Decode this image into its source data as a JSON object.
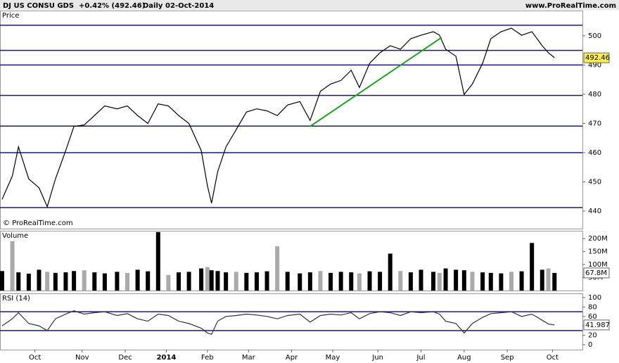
{
  "header": {
    "title": "DJ US CONSU GDS",
    "change": "+0.42% (492.46)",
    "period": "Daily",
    "date": "02-Oct-2014",
    "site": "www.ProRealTime.com"
  },
  "chart_data": [
    {
      "type": "line",
      "label": "Price",
      "copyright": "© ProRealTime.com",
      "color": "#000000",
      "x": [
        1,
        6,
        9,
        14,
        19,
        23,
        27,
        32,
        36,
        41,
        46,
        51,
        57,
        62,
        67,
        72,
        77,
        82,
        87,
        92,
        98,
        101,
        103,
        106,
        110,
        115,
        120,
        125,
        130,
        135,
        140,
        146,
        151,
        156,
        161,
        166,
        171,
        175,
        180,
        185,
        190,
        195,
        200,
        205,
        211,
        214,
        217,
        222,
        226,
        230,
        235,
        239,
        244,
        249,
        254,
        259,
        264,
        267,
        270
      ],
      "values": [
        444,
        452,
        462,
        451,
        448,
        441.5,
        451,
        460.7,
        469,
        469.5,
        472.7,
        476,
        475,
        476,
        472.7,
        470,
        476.7,
        476,
        472.7,
        470,
        460.7,
        448.7,
        442.7,
        453.5,
        461.9,
        467.9,
        473.9,
        475,
        474.3,
        472.7,
        476.3,
        477.5,
        471,
        481,
        483.5,
        484.7,
        488.2,
        482.3,
        490.6,
        494.2,
        496.6,
        495.4,
        499,
        500.2,
        501.4,
        500.2,
        495.4,
        493,
        479.9,
        483.5,
        490.6,
        499,
        501.4,
        502.6,
        500.2,
        501.4,
        496.6,
        494.2,
        492.5
      ],
      "xlim": [
        0,
        283.6
      ],
      "ylim": [
        434,
        504.3
      ],
      "yticks": [
        440,
        450,
        460,
        470,
        480,
        490,
        500
      ],
      "levels": [
        503.6,
        495,
        490,
        479.6,
        469.1,
        460,
        441.2
      ],
      "level_color": "#1a1a80",
      "trendline": {
        "x": [
          151,
          215
        ],
        "values": [
          469,
          499.4
        ],
        "color": "#22a022"
      },
      "last": 492.46
    },
    {
      "type": "bar",
      "label": "Volume",
      "color": "#000000",
      "highlight_color": "#aaaaaa",
      "x": [
        1,
        6,
        9,
        14,
        19,
        23,
        27,
        32,
        36,
        41,
        46,
        51,
        57,
        62,
        67,
        72,
        77,
        82,
        87,
        92,
        98,
        101,
        103,
        106,
        110,
        115,
        120,
        125,
        130,
        135,
        140,
        146,
        151,
        156,
        161,
        166,
        171,
        175,
        180,
        185,
        190,
        195,
        200,
        205,
        211,
        214,
        217,
        222,
        226,
        230,
        235,
        239,
        244,
        249,
        254,
        259,
        264,
        267,
        270
      ],
      "values": [
        75,
        190,
        70,
        65,
        80,
        72,
        68,
        70,
        75,
        78,
        70,
        66,
        72,
        68,
        80,
        74,
        225,
        60,
        70,
        72,
        85,
        90,
        78,
        75,
        70,
        72,
        68,
        70,
        74,
        170,
        72,
        66,
        70,
        75,
        68,
        72,
        70,
        66,
        74,
        72,
        142,
        75,
        70,
        80,
        72,
        68,
        85,
        80,
        78,
        72,
        70,
        68,
        66,
        72,
        74,
        183,
        80,
        85,
        67.8
      ],
      "xlim": [
        0,
        283.6
      ],
      "ylim": [
        0,
        230
      ],
      "yticks": [
        {
          "value": 50,
          "label": "50M"
        },
        {
          "value": 100,
          "label": "100M"
        },
        {
          "value": 150,
          "label": "150M"
        },
        {
          "value": 200,
          "label": "200M"
        }
      ],
      "last": {
        "value": 67.8,
        "label": "67.8M"
      }
    },
    {
      "type": "line",
      "label": "RSI (14)",
      "color": "#333333",
      "x": [
        1,
        6,
        9,
        14,
        19,
        23,
        27,
        32,
        36,
        41,
        46,
        51,
        57,
        62,
        67,
        72,
        77,
        82,
        87,
        92,
        98,
        101,
        103,
        106,
        110,
        115,
        120,
        125,
        130,
        135,
        140,
        146,
        151,
        156,
        161,
        166,
        171,
        175,
        180,
        185,
        190,
        195,
        200,
        205,
        211,
        214,
        217,
        222,
        226,
        230,
        235,
        239,
        244,
        249,
        254,
        259,
        264,
        267,
        270
      ],
      "values": [
        40,
        55,
        68,
        45,
        40,
        30,
        55,
        65,
        72,
        65,
        68,
        70,
        62,
        66,
        55,
        50,
        65,
        62,
        50,
        45,
        35,
        25,
        22,
        50,
        60,
        62,
        65,
        63,
        60,
        55,
        62,
        65,
        48,
        62,
        65,
        63,
        68,
        55,
        66,
        70,
        68,
        62,
        70,
        68,
        70,
        65,
        50,
        45,
        25,
        45,
        58,
        66,
        68,
        70,
        60,
        65,
        52,
        44,
        41.987
      ],
      "xlim": [
        0,
        283.6
      ],
      "ylim": [
        -10.4,
        109
      ],
      "yticks": [
        0,
        20,
        40,
        60,
        80,
        100
      ],
      "levels": [
        30,
        70
      ],
      "level_color": "#1a1a80",
      "xticks": [
        {
          "value": 17,
          "label": "Oct"
        },
        {
          "value": 40,
          "label": "Nov"
        },
        {
          "value": 61,
          "label": "Dec"
        },
        {
          "value": 81,
          "label": "2014"
        },
        {
          "value": 101,
          "label": "Feb"
        },
        {
          "value": 121,
          "label": "Mar"
        },
        {
          "value": 142,
          "label": "Apr"
        },
        {
          "value": 162,
          "label": "May"
        },
        {
          "value": 184,
          "label": "Jun"
        },
        {
          "value": 205,
          "label": "Jul"
        },
        {
          "value": 226,
          "label": "Aug"
        },
        {
          "value": 247,
          "label": "Sep"
        },
        {
          "value": 269,
          "label": "Oct"
        }
      ],
      "last": 41.987
    }
  ]
}
